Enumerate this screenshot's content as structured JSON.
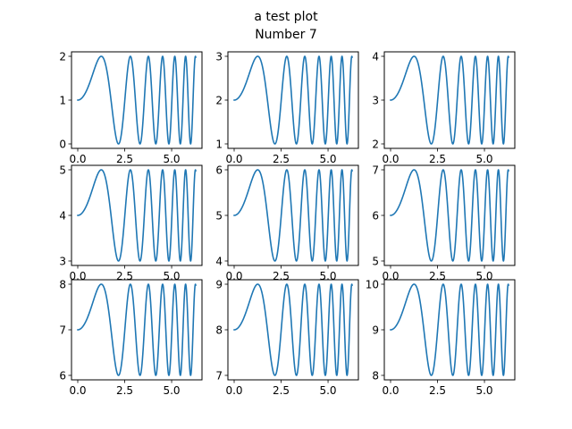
{
  "figure": {
    "title_line1": "a test plot",
    "title_line2": "Number 7"
  },
  "chart_data": [
    {
      "type": "line",
      "panel": 1,
      "x_range": [
        0,
        6.283
      ],
      "y_range": [
        0,
        2
      ],
      "series": [
        {
          "function": "offset + sin(x^2)",
          "offset": 1
        }
      ],
      "xticks": [
        0.0,
        2.5,
        5.0
      ],
      "xtick_labels": [
        "0.0",
        "2.5",
        "5.0"
      ],
      "yticks": [
        0,
        1,
        2
      ],
      "ytick_labels": [
        "0",
        "1",
        "2"
      ],
      "color": "#1f77b4"
    },
    {
      "type": "line",
      "panel": 2,
      "x_range": [
        0,
        6.283
      ],
      "y_range": [
        1,
        3
      ],
      "series": [
        {
          "function": "offset + sin(x^2)",
          "offset": 2
        }
      ],
      "xticks": [
        0.0,
        2.5,
        5.0
      ],
      "xtick_labels": [
        "0.0",
        "2.5",
        "5.0"
      ],
      "yticks": [
        1,
        2,
        3
      ],
      "ytick_labels": [
        "1",
        "2",
        "3"
      ],
      "color": "#1f77b4"
    },
    {
      "type": "line",
      "panel": 3,
      "x_range": [
        0,
        6.283
      ],
      "y_range": [
        2,
        4
      ],
      "series": [
        {
          "function": "offset + sin(x^2)",
          "offset": 3
        }
      ],
      "xticks": [
        0.0,
        2.5,
        5.0
      ],
      "xtick_labels": [
        "0.0",
        "2.5",
        "5.0"
      ],
      "yticks": [
        2,
        3,
        4
      ],
      "ytick_labels": [
        "2",
        "3",
        "4"
      ],
      "color": "#1f77b4"
    },
    {
      "type": "line",
      "panel": 4,
      "x_range": [
        0,
        6.283
      ],
      "y_range": [
        3,
        5
      ],
      "series": [
        {
          "function": "offset + sin(x^2)",
          "offset": 4
        }
      ],
      "xticks": [
        0.0,
        2.5,
        5.0
      ],
      "xtick_labels": [
        "0.0",
        "2.5",
        "5.0"
      ],
      "yticks": [
        3,
        4,
        5
      ],
      "ytick_labels": [
        "3",
        "4",
        "5"
      ],
      "color": "#1f77b4"
    },
    {
      "type": "line",
      "panel": 5,
      "x_range": [
        0,
        6.283
      ],
      "y_range": [
        4,
        6
      ],
      "series": [
        {
          "function": "offset + sin(x^2)",
          "offset": 5
        }
      ],
      "xticks": [
        0.0,
        2.5,
        5.0
      ],
      "xtick_labels": [
        "0.0",
        "2.5",
        "5.0"
      ],
      "yticks": [
        4,
        5,
        6
      ],
      "ytick_labels": [
        "4",
        "5",
        "6"
      ],
      "color": "#1f77b4"
    },
    {
      "type": "line",
      "panel": 6,
      "x_range": [
        0,
        6.283
      ],
      "y_range": [
        5,
        7
      ],
      "series": [
        {
          "function": "offset + sin(x^2)",
          "offset": 6
        }
      ],
      "xticks": [
        0.0,
        2.5,
        5.0
      ],
      "xtick_labels": [
        "0.0",
        "2.5",
        "5.0"
      ],
      "yticks": [
        5,
        6,
        7
      ],
      "ytick_labels": [
        "5",
        "6",
        "7"
      ],
      "color": "#1f77b4"
    },
    {
      "type": "line",
      "panel": 7,
      "x_range": [
        0,
        6.283
      ],
      "y_range": [
        6,
        8
      ],
      "series": [
        {
          "function": "offset + sin(x^2)",
          "offset": 7
        }
      ],
      "xticks": [
        0.0,
        2.5,
        5.0
      ],
      "xtick_labels": [
        "0.0",
        "2.5",
        "5.0"
      ],
      "yticks": [
        6,
        7,
        8
      ],
      "ytick_labels": [
        "6",
        "7",
        "8"
      ],
      "color": "#1f77b4"
    },
    {
      "type": "line",
      "panel": 8,
      "x_range": [
        0,
        6.283
      ],
      "y_range": [
        7,
        9
      ],
      "series": [
        {
          "function": "offset + sin(x^2)",
          "offset": 8
        }
      ],
      "xticks": [
        0.0,
        2.5,
        5.0
      ],
      "xtick_labels": [
        "0.0",
        "2.5",
        "5.0"
      ],
      "yticks": [
        7,
        8,
        9
      ],
      "ytick_labels": [
        "7",
        "8",
        "9"
      ],
      "color": "#1f77b4"
    },
    {
      "type": "line",
      "panel": 9,
      "x_range": [
        0,
        6.283
      ],
      "y_range": [
        8,
        10
      ],
      "series": [
        {
          "function": "offset + sin(x^2)",
          "offset": 9
        }
      ],
      "xticks": [
        0.0,
        2.5,
        5.0
      ],
      "xtick_labels": [
        "0.0",
        "2.5",
        "5.0"
      ],
      "yticks": [
        8,
        9,
        10
      ],
      "ytick_labels": [
        "8",
        "9",
        "10"
      ],
      "color": "#1f77b4"
    }
  ]
}
